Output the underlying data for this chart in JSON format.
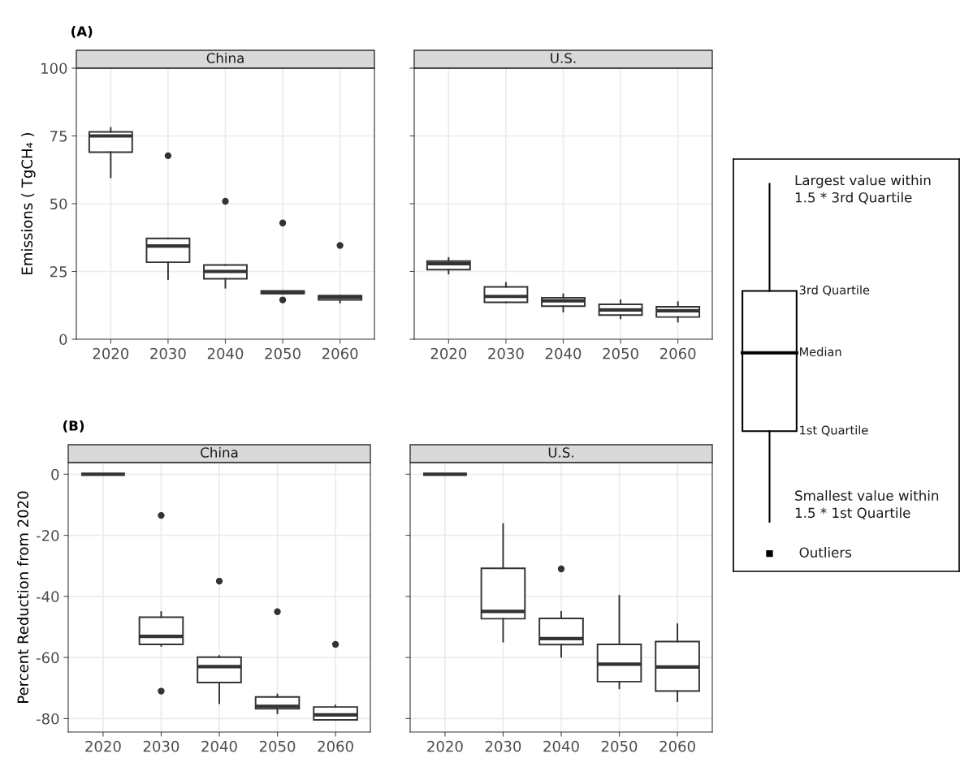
{
  "chart_data": [
    {
      "type": "box",
      "title": "China",
      "ylabel": "Emissions ( TgCH₄ )",
      "annotations": [
        "(A)"
      ],
      "categories": [
        "2020",
        "2030",
        "2040",
        "2050",
        "2060"
      ],
      "ylim": [
        0,
        100
      ],
      "yticks": [
        0,
        25,
        50,
        75,
        100
      ],
      "grid": true,
      "boxes": [
        {
          "low": 59.7,
          "q1": 69,
          "median": 75,
          "q3": 76.5,
          "high": 78
        },
        {
          "low": 22.2,
          "q1": 28.4,
          "median": 34.4,
          "q3": 37.2,
          "high": 37.2,
          "outliers": [
            67.7
          ]
        },
        {
          "low": 19,
          "q1": 22.3,
          "median": 25,
          "q3": 27.4,
          "high": 27.4,
          "outliers": [
            50.9
          ]
        },
        {
          "low": 16.8,
          "q1": 16.8,
          "median": 17.3,
          "q3": 17.8,
          "high": 17.8,
          "outliers": [
            42.9,
            14.5
          ]
        },
        {
          "low": 13.5,
          "q1": 14.5,
          "median": 15.5,
          "q3": 16.1,
          "high": 16.1,
          "outliers": [
            34.6
          ]
        }
      ]
    },
    {
      "type": "box",
      "title": "U.S.",
      "tick_labels": "x",
      "categories": [
        "2020",
        "2030",
        "2040",
        "2050",
        "2060"
      ],
      "ylim": [
        0,
        100
      ],
      "yticks": [
        0,
        25,
        50,
        75,
        100
      ],
      "grid": true,
      "boxes": [
        {
          "low": 24.2,
          "q1": 25.7,
          "median": 27.9,
          "q3": 28.8,
          "high": 30
        },
        {
          "low": 13.6,
          "q1": 13.6,
          "median": 15.8,
          "q3": 19.3,
          "high": 20.8
        },
        {
          "low": 10.2,
          "q1": 12.2,
          "median": 14.2,
          "q3": 15.3,
          "high": 16.6
        },
        {
          "low": 7.7,
          "q1": 8.9,
          "median": 10.8,
          "q3": 12.9,
          "high": 14.4
        },
        {
          "low": 6.5,
          "q1": 8.2,
          "median": 10.5,
          "q3": 12,
          "high": 13.7
        }
      ]
    },
    {
      "type": "box",
      "title": "China",
      "ylabel": "Percent Reduction from 2020",
      "annotations": [
        "(B)"
      ],
      "categories": [
        "2020",
        "2030",
        "2040",
        "2050",
        "2060"
      ],
      "ylim": [
        -84.4,
        3.8
      ],
      "yticks": [
        -80,
        -60,
        -40,
        -20,
        0
      ],
      "grid": true,
      "boxes": [
        {
          "low": 0,
          "q1": 0,
          "median": 0,
          "q3": 0,
          "high": 0
        },
        {
          "low": -56.2,
          "q1": -55.7,
          "median": -53.1,
          "q3": -46.8,
          "high": -45.1,
          "outliers": [
            -13.5,
            -71
          ]
        },
        {
          "low": -75,
          "q1": -68.2,
          "median": -63,
          "q3": -59.9,
          "high": -59.5,
          "outliers": [
            -35
          ]
        },
        {
          "low": -78.3,
          "q1": -76.8,
          "median": -76,
          "q3": -72.9,
          "high": -72.1,
          "outliers": [
            -45
          ]
        },
        {
          "low": -80.4,
          "q1": -80.4,
          "median": -78.8,
          "q3": -76.2,
          "high": -75.7,
          "outliers": [
            -55.7
          ]
        }
      ]
    },
    {
      "type": "box",
      "title": "U.S.",
      "tick_labels": "x",
      "categories": [
        "2020",
        "2030",
        "2040",
        "2050",
        "2060"
      ],
      "ylim": [
        -84.4,
        3.8
      ],
      "yticks": [
        -80,
        -60,
        -40,
        -20,
        0
      ],
      "grid": true,
      "boxes": [
        {
          "low": 0,
          "q1": 0,
          "median": 0,
          "q3": 0,
          "high": 0
        },
        {
          "low": -54.8,
          "q1": -47.3,
          "median": -44.9,
          "q3": -30.8,
          "high": -16.3
        },
        {
          "low": -59.8,
          "q1": -55.8,
          "median": -53.8,
          "q3": -47.2,
          "high": -45.1,
          "outliers": [
            -31
          ]
        },
        {
          "low": -70.1,
          "q1": -67.9,
          "median": -62.2,
          "q3": -55.7,
          "high": -39.8
        },
        {
          "low": -74.3,
          "q1": -71,
          "median": -63.1,
          "q3": -54.8,
          "high": -49.1
        }
      ]
    },
    {
      "type": "other",
      "annotations": [
        "Largest value within\n1.5 * 3rd Quartile",
        "3rd Quartile",
        "Median",
        "1st Quartile",
        "Smallest value within\n1.5 * 1st Quartile",
        "Outliers"
      ]
    }
  ]
}
